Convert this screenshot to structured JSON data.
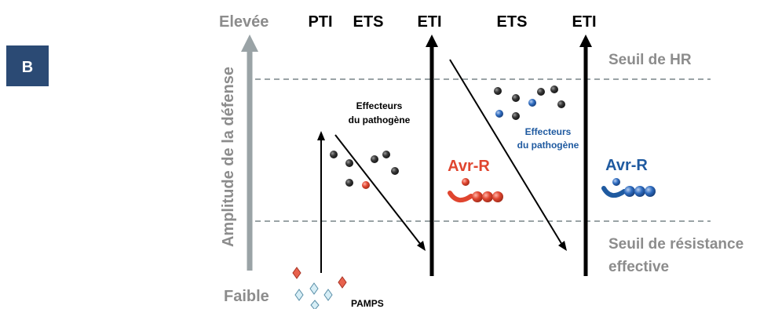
{
  "panel_label": "B",
  "y_axis": {
    "label": "Amplitude de la défense",
    "top_label": "Elevée",
    "bottom_label": "Faible"
  },
  "phases": [
    "PTI",
    "ETS",
    "ETI",
    "ETS",
    "ETI"
  ],
  "thresholds": {
    "hr": "Seuil de HR",
    "resistance_line1": "Seuil de résistance",
    "resistance_line2": "effective"
  },
  "effectors": {
    "first_line1": "Effecteurs",
    "first_line2": "du pathogène",
    "second_line1": "Effecteurs",
    "second_line2": "du pathogène"
  },
  "avr_r": {
    "first": "Avr-R",
    "second": "Avr-R"
  },
  "pamps": "PAMPS",
  "colors": {
    "panel_bg": "#2b4a74",
    "axis_gray": "#9aa3a6",
    "label_gray": "#8c8c8c",
    "red": "#e0452f",
    "blue": "#1f5aa0",
    "pamp_red": "#e8624d",
    "pamp_blue": "#a8d8e8"
  }
}
